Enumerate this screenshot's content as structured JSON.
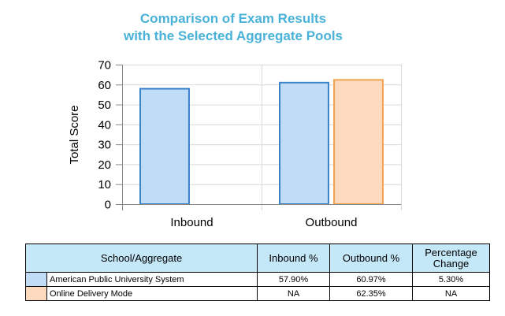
{
  "chart_data": {
    "type": "bar",
    "title": [
      "Comparison of Exam Results",
      "with the Selected Aggregate Pools"
    ],
    "xlabel": "",
    "ylabel": "Total Score",
    "ylim": [
      0,
      70
    ],
    "yticks": [
      0,
      10,
      20,
      30,
      40,
      50,
      60,
      70
    ],
    "categories": [
      "Inbound",
      "Outbound"
    ],
    "series": [
      {
        "name": "American Public University System",
        "values": [
          57.9,
          60.97
        ],
        "fill": "#c0dcf6",
        "stroke": "#3b82c9"
      },
      {
        "name": "Online Delivery Mode",
        "values": [
          null,
          62.35
        ],
        "fill": "#fdd9bd",
        "stroke": "#f0a44f"
      }
    ],
    "grid": true,
    "gridColor": "#d9d9d9"
  },
  "table": {
    "headers": [
      "School/Aggregate",
      "Inbound %",
      "Outbound %",
      "Percentage Change"
    ],
    "rows": [
      {
        "swatch": "#c0dcf6",
        "name": "American Public University System",
        "inbound": "57.90%",
        "outbound": "60.97%",
        "change": "5.30%"
      },
      {
        "swatch": "#fdd9bd",
        "name": "Online Delivery Mode",
        "inbound": "NA",
        "outbound": "62.35%",
        "change": "NA"
      }
    ]
  }
}
